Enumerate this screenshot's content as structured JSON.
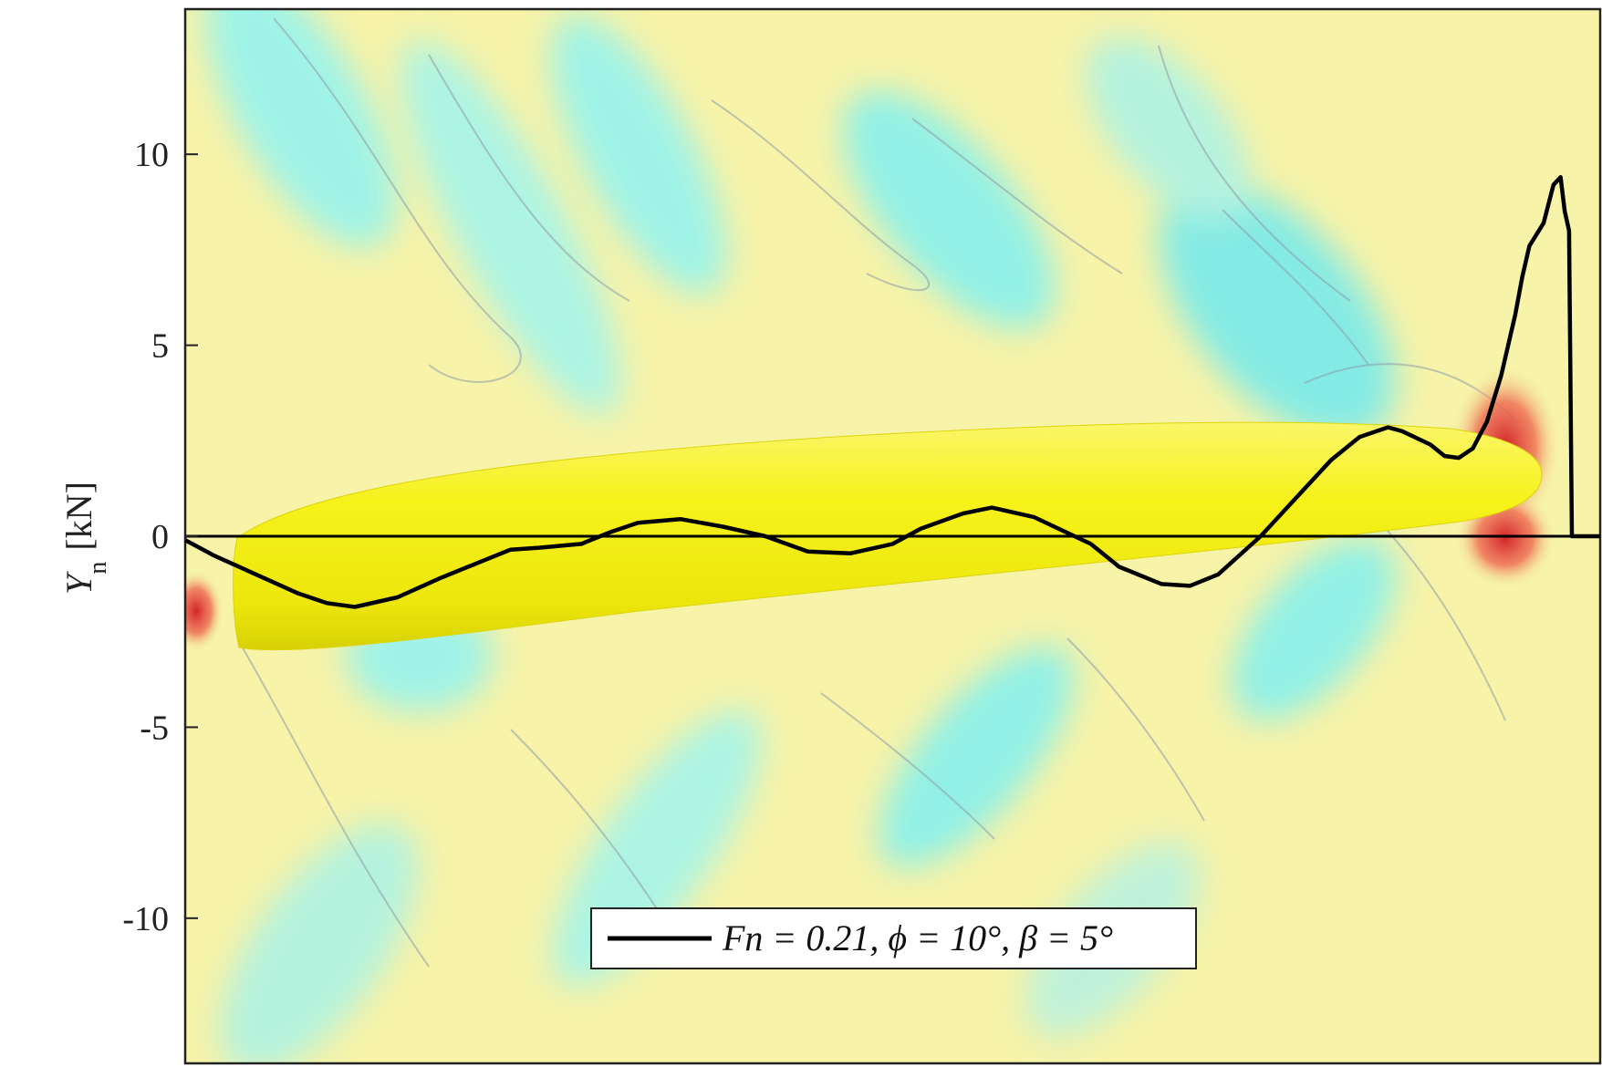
{
  "chart_data": {
    "type": "line",
    "title": "",
    "xlabel": "",
    "ylabel": "Y_n [kN]",
    "ylabel_parts": {
      "symbol": "Y",
      "subscript": "n",
      "unit": "[kN]"
    },
    "ylim": [
      -13.8,
      13.8
    ],
    "xlim": [
      0,
      1
    ],
    "yticks": [
      10,
      5,
      0,
      -5,
      -10
    ],
    "ytick_labels": [
      "10",
      "5",
      "0",
      "-5",
      "-10"
    ],
    "grid": false,
    "legend_position": "bottom-center",
    "legend_label": "Fn = 0.21, ϕ = 10°, β = 5°",
    "background": "CFD wave-elevation contour with yellow ship hull",
    "colors": {
      "line": "#000000",
      "hull": "#f2ee10",
      "field_yellow": "#f6f3a6",
      "field_cyan": "#8ff3f3",
      "field_red": "#e63a2e",
      "contour": "#8e9aa8"
    },
    "series": [
      {
        "name": "Fn = 0.21, ϕ = 10°, β = 5°",
        "x": [
          0.0,
          0.02,
          0.05,
          0.08,
          0.1,
          0.12,
          0.15,
          0.18,
          0.21,
          0.23,
          0.25,
          0.28,
          0.3,
          0.32,
          0.35,
          0.38,
          0.41,
          0.44,
          0.47,
          0.5,
          0.52,
          0.55,
          0.57,
          0.6,
          0.64,
          0.66,
          0.69,
          0.71,
          0.73,
          0.76,
          0.79,
          0.81,
          0.83,
          0.85,
          0.86,
          0.88,
          0.89,
          0.9,
          0.91,
          0.92,
          0.93,
          0.94,
          0.945,
          0.95,
          0.96,
          0.967,
          0.972,
          0.975,
          0.978,
          0.98,
          0.985,
          0.99,
          0.995,
          1.0
        ],
        "values": [
          -0.1,
          -0.5,
          -1.0,
          -1.5,
          -1.75,
          -1.85,
          -1.6,
          -1.1,
          -0.65,
          -0.35,
          -0.3,
          -0.2,
          0.1,
          0.35,
          0.45,
          0.25,
          0.0,
          -0.4,
          -0.45,
          -0.2,
          0.2,
          0.6,
          0.75,
          0.5,
          -0.2,
          -0.8,
          -1.25,
          -1.3,
          -1.0,
          0.0,
          1.2,
          2.0,
          2.6,
          2.85,
          2.75,
          2.4,
          2.1,
          2.05,
          2.3,
          3.0,
          4.2,
          5.8,
          6.8,
          7.6,
          8.2,
          9.2,
          9.4,
          8.5,
          8.0,
          0.0,
          0.0,
          0.0,
          0.0,
          0.0
        ]
      }
    ]
  }
}
